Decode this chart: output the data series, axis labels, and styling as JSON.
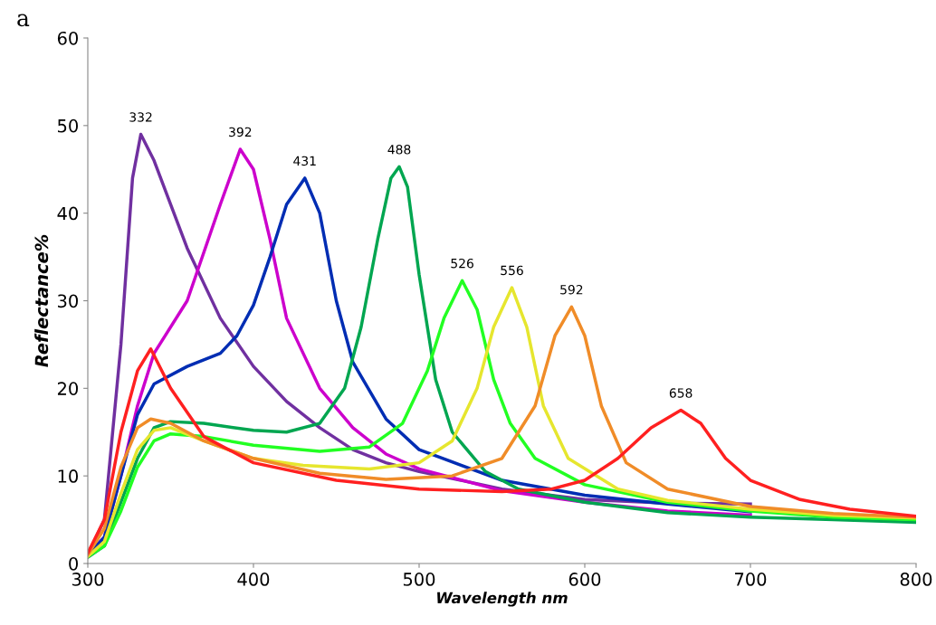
{
  "chart_data": {
    "type": "line",
    "xlabel": "Wavelength nm",
    "ylabel": "Reflectance%",
    "xlim": [
      300,
      800
    ],
    "ylim": [
      0,
      60
    ],
    "xticks": [
      300,
      400,
      500,
      600,
      700,
      800
    ],
    "yticks": [
      0,
      10,
      20,
      30,
      40,
      50,
      60
    ],
    "grid": false,
    "legend": false,
    "marker": "none",
    "line_style": "solid",
    "series": [
      {
        "color": "#7030a0",
        "x": [
          300,
          310,
          320,
          327,
          332,
          340,
          360,
          380,
          400,
          420,
          440,
          460,
          480,
          500,
          550,
          600,
          650,
          700
        ],
        "values": [
          1,
          5,
          25,
          44,
          49,
          46,
          36,
          28,
          22.5,
          18.5,
          15.5,
          13,
          11.5,
          10.5,
          8.5,
          7.3,
          6.9,
          6.8
        ]
      },
      {
        "color": "#cc00cc",
        "x": [
          300,
          310,
          320,
          330,
          340,
          360,
          380,
          392,
          400,
          410,
          420,
          440,
          460,
          480,
          500,
          550,
          600,
          650,
          700
        ],
        "values": [
          1,
          3,
          10,
          18,
          24,
          30,
          41,
          47.3,
          45,
          37,
          28,
          20,
          15.5,
          12.5,
          10.8,
          8.3,
          7,
          6,
          5.5
        ]
      },
      {
        "color": "#002db3",
        "x": [
          300,
          310,
          320,
          330,
          340,
          360,
          380,
          390,
          400,
          410,
          420,
          431,
          440,
          450,
          460,
          480,
          500,
          550,
          600,
          650,
          700
        ],
        "values": [
          1,
          3,
          10,
          17,
          20.5,
          22.5,
          24,
          26,
          29.5,
          35,
          41,
          44,
          40,
          30,
          23,
          16.5,
          13,
          9.5,
          7.8,
          6.8,
          5.9
        ]
      },
      {
        "color": "#00a650",
        "x": [
          300,
          310,
          320,
          330,
          340,
          350,
          370,
          400,
          420,
          440,
          455,
          465,
          475,
          483,
          488,
          493,
          500,
          510,
          520,
          540,
          560,
          600,
          650,
          700,
          750,
          800
        ],
        "values": [
          0.7,
          2,
          7,
          12,
          15.5,
          16.2,
          16,
          15.2,
          15,
          16,
          20,
          27,
          37,
          44,
          45.3,
          43,
          33,
          21,
          15,
          10.5,
          8.5,
          7,
          5.8,
          5.3,
          5,
          4.7
        ]
      },
      {
        "color": "#22ff22",
        "x": [
          300,
          310,
          320,
          330,
          340,
          350,
          370,
          400,
          440,
          470,
          490,
          505,
          515,
          526,
          535,
          545,
          555,
          570,
          600,
          650,
          700,
          750,
          800
        ],
        "values": [
          0.8,
          2,
          6,
          11,
          14,
          14.8,
          14.5,
          13.5,
          12.8,
          13.3,
          16,
          22,
          28,
          32.3,
          29,
          21,
          16,
          12,
          9,
          7,
          6,
          5.3,
          5
        ]
      },
      {
        "color": "#e6e62e",
        "x": [
          300,
          310,
          320,
          330,
          340,
          350,
          370,
          400,
          430,
          470,
          500,
          520,
          535,
          545,
          556,
          565,
          575,
          590,
          620,
          650,
          700,
          750,
          800
        ],
        "values": [
          0.8,
          2.5,
          8,
          13,
          15.2,
          15.5,
          14,
          12,
          11.2,
          10.8,
          11.5,
          14,
          20,
          27,
          31.5,
          27,
          18,
          12,
          8.5,
          7.2,
          6.2,
          5.5,
          5.2
        ]
      },
      {
        "color": "#f08c28",
        "x": [
          300,
          310,
          320,
          330,
          338,
          350,
          370,
          400,
          440,
          480,
          520,
          550,
          570,
          582,
          592,
          600,
          610,
          625,
          650,
          700,
          750,
          800
        ],
        "values": [
          1,
          4,
          11,
          15.5,
          16.5,
          16,
          14,
          12,
          10.3,
          9.6,
          10,
          12,
          18,
          26,
          29.3,
          26,
          18,
          11.5,
          8.5,
          6.5,
          5.7,
          5.3
        ]
      },
      {
        "color": "#ff2020",
        "x": [
          300,
          310,
          320,
          330,
          338,
          350,
          370,
          400,
          450,
          500,
          550,
          580,
          600,
          620,
          640,
          658,
          670,
          685,
          700,
          730,
          760,
          800
        ],
        "values": [
          1.2,
          5,
          15,
          22,
          24.5,
          20,
          14.5,
          11.5,
          9.5,
          8.5,
          8.2,
          8.5,
          9.5,
          12,
          15.5,
          17.5,
          16,
          12,
          9.5,
          7.3,
          6.2,
          5.4
        ]
      }
    ],
    "annotations": [
      {
        "text": "332",
        "x": 332,
        "y": 49
      },
      {
        "text": "392",
        "x": 392,
        "y": 47.3
      },
      {
        "text": "431",
        "x": 431,
        "y": 44
      },
      {
        "text": "488",
        "x": 488,
        "y": 45.3
      },
      {
        "text": "526",
        "x": 526,
        "y": 32.3
      },
      {
        "text": "556",
        "x": 556,
        "y": 31.5
      },
      {
        "text": "592",
        "x": 592,
        "y": 29.3
      },
      {
        "text": "658",
        "x": 658,
        "y": 17.5
      },
      "a"
    ]
  }
}
